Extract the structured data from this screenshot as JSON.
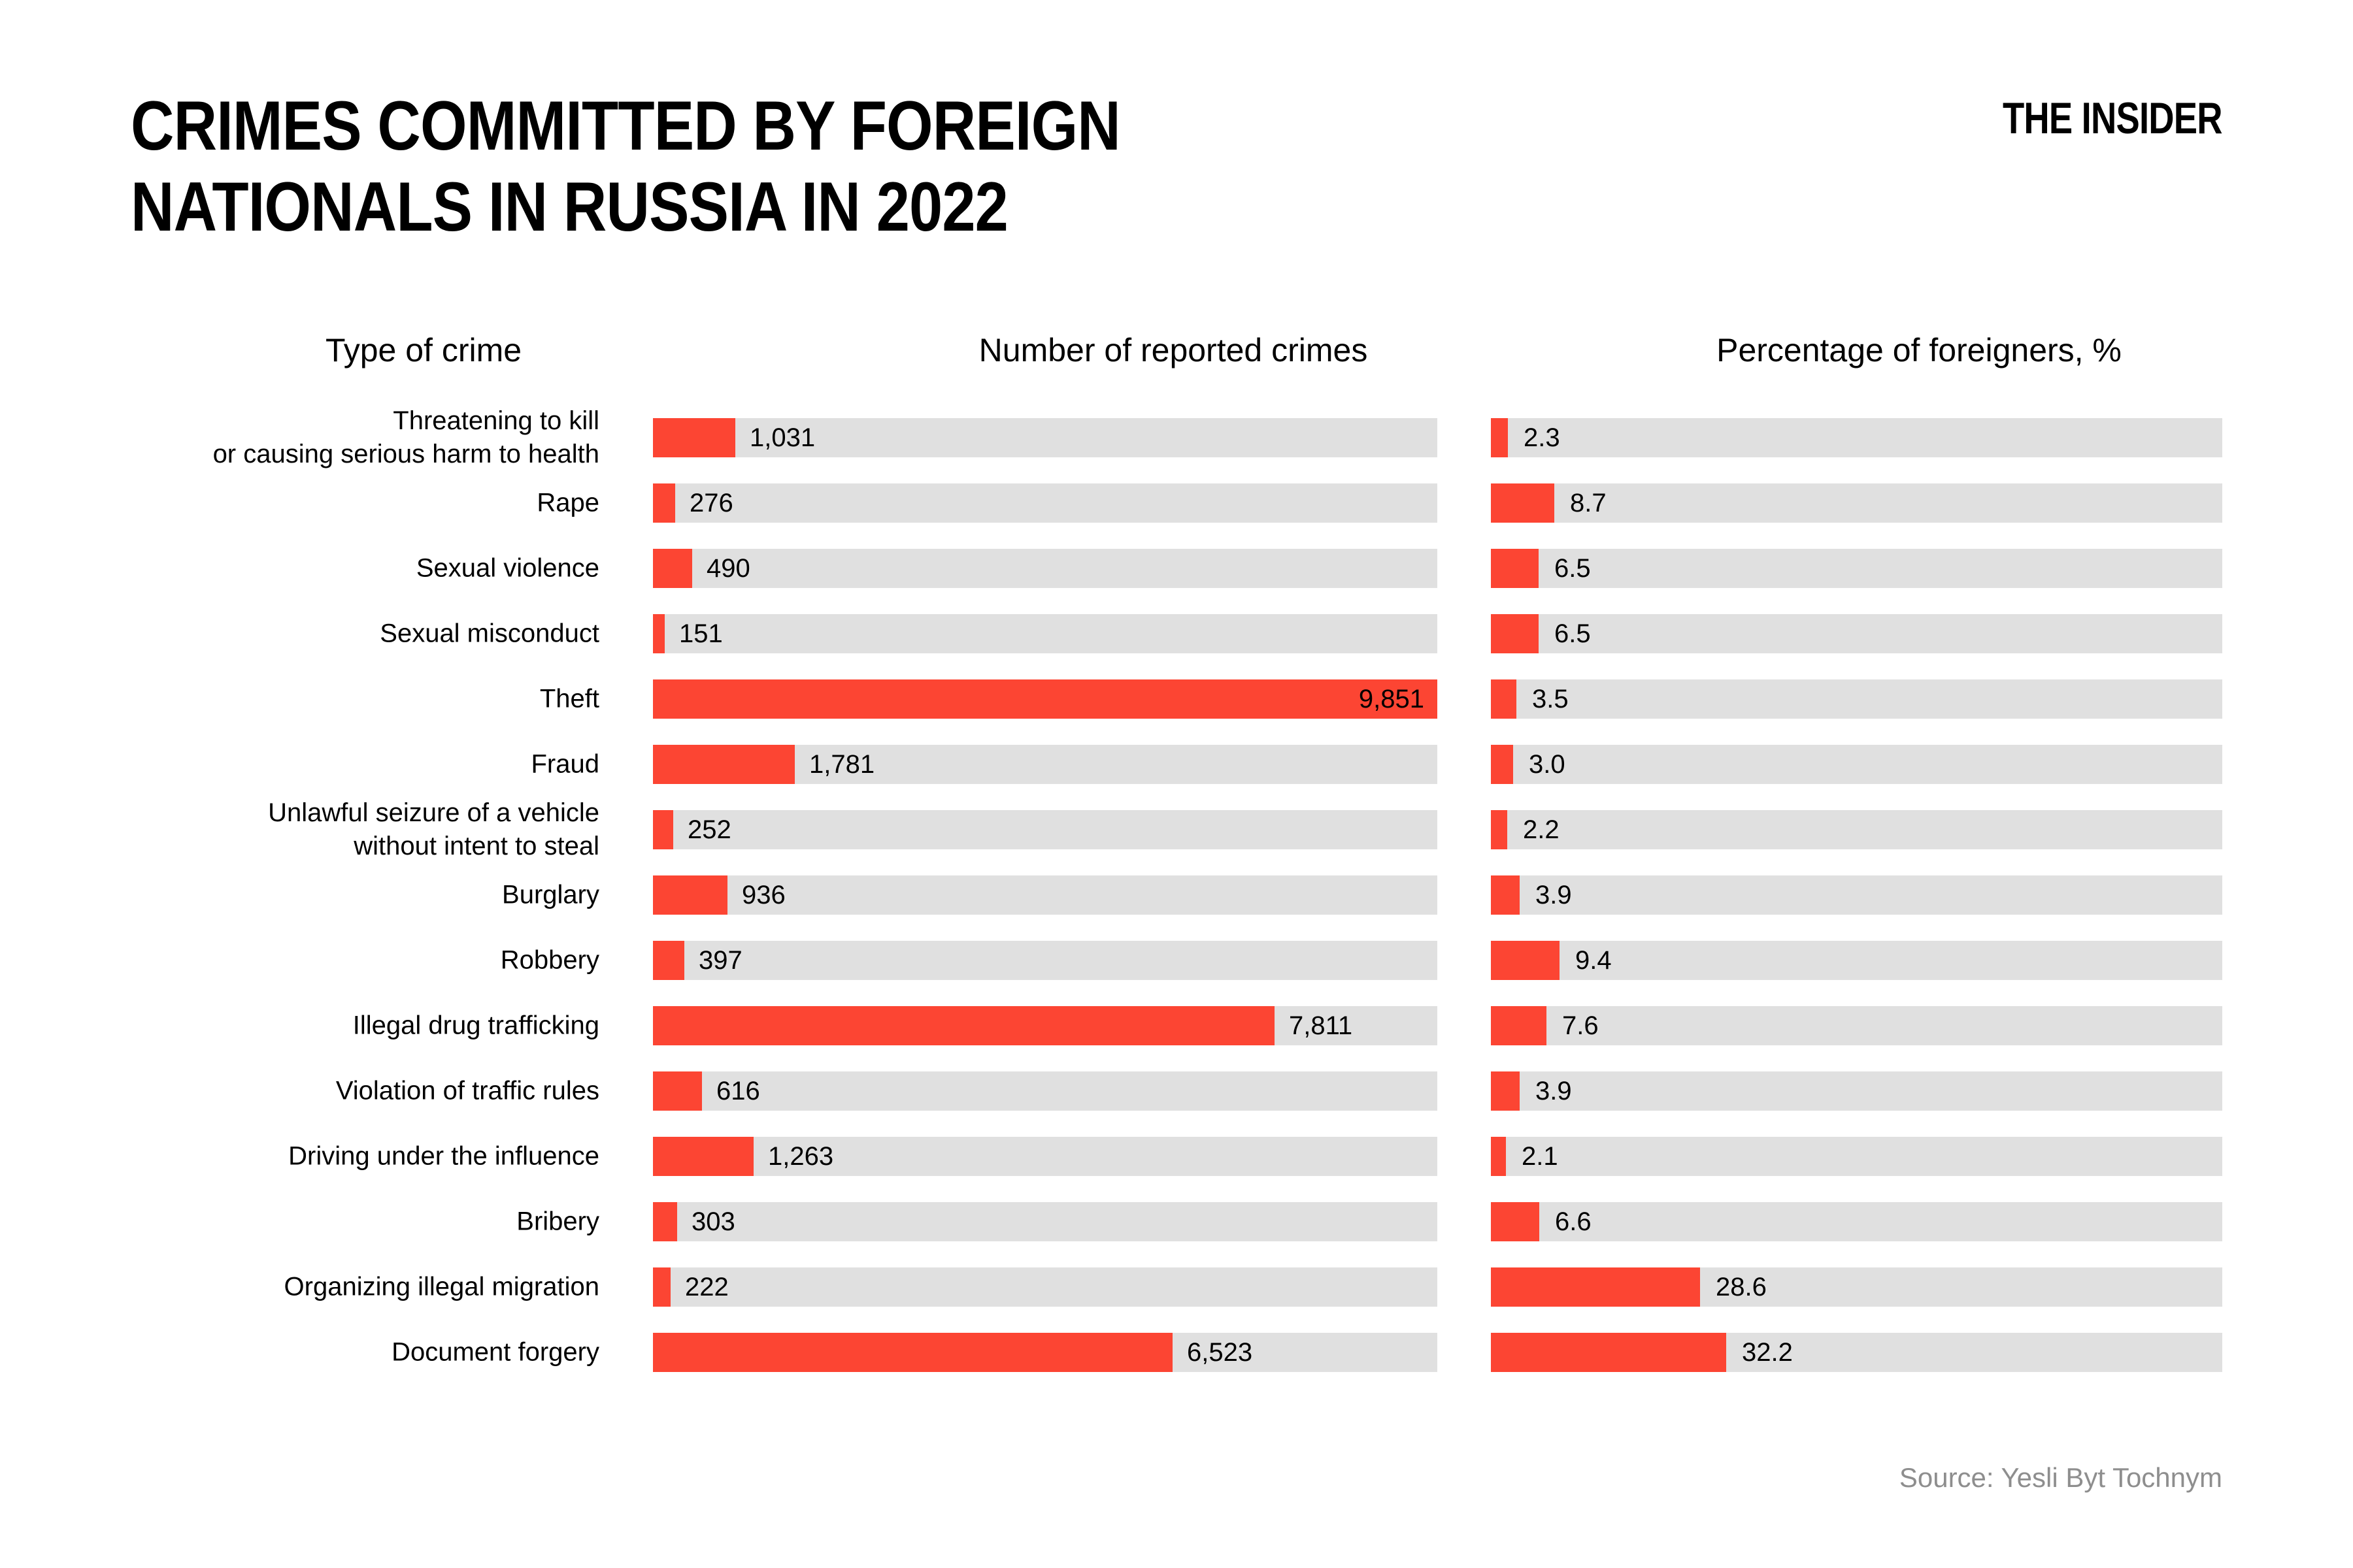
{
  "header": {
    "title_lines": [
      "CRIMES COMMITTED BY FOREIGN",
      "NATIONALS IN RUSSIA IN 2022"
    ],
    "logo": "THE INSIDER"
  },
  "columns": {
    "crime": "Type of crime",
    "number": "Number of reported crimes",
    "percent": "Percentage of foreigners, %"
  },
  "source": "Source: Yesli Byt Tochnym",
  "colors": {
    "bar_red": "#FC4533",
    "track_gray": "#E0E0E0",
    "source_gray": "#8E8E8E"
  },
  "chart_data": {
    "type": "bar",
    "orientation": "horizontal",
    "title": "CRIMES COMMITTED BY FOREIGN NATIONALS IN RUSSIA IN 2022",
    "columns": [
      "Type of crime",
      "Number of reported crimes",
      "Percentage of foreigners, %"
    ],
    "number_axis_max": 9851,
    "percent_axis_max": 100,
    "grid": false,
    "legend": "none",
    "rows": [
      {
        "crime_lines": [
          "Threatening to kill",
          "or causing serious harm to health"
        ],
        "crimes": 1031,
        "crimes_label": "1,031",
        "pct": 2.3,
        "pct_label": "2.3"
      },
      {
        "crime_lines": [
          "Rape"
        ],
        "crimes": 276,
        "crimes_label": "276",
        "pct": 8.7,
        "pct_label": "8.7"
      },
      {
        "crime_lines": [
          "Sexual violence"
        ],
        "crimes": 490,
        "crimes_label": "490",
        "pct": 6.5,
        "pct_label": "6.5"
      },
      {
        "crime_lines": [
          "Sexual misconduct"
        ],
        "crimes": 151,
        "crimes_label": "151",
        "pct": 6.5,
        "pct_label": "6.5"
      },
      {
        "crime_lines": [
          "Theft"
        ],
        "crimes": 9851,
        "crimes_label": "9,851",
        "pct": 3.5,
        "pct_label": "3.5",
        "value_inside": true
      },
      {
        "crime_lines": [
          "Fraud"
        ],
        "crimes": 1781,
        "crimes_label": "1,781",
        "pct": 3.0,
        "pct_label": "3.0"
      },
      {
        "crime_lines": [
          "Unlawful seizure of a vehicle",
          "without intent to steal"
        ],
        "crimes": 252,
        "crimes_label": "252",
        "pct": 2.2,
        "pct_label": "2.2"
      },
      {
        "crime_lines": [
          "Burglary"
        ],
        "crimes": 936,
        "crimes_label": "936",
        "pct": 3.9,
        "pct_label": "3.9"
      },
      {
        "crime_lines": [
          "Robbery"
        ],
        "crimes": 397,
        "crimes_label": "397",
        "pct": 9.4,
        "pct_label": "9.4"
      },
      {
        "crime_lines": [
          "Illegal drug trafficking"
        ],
        "crimes": 7811,
        "crimes_label": "7,811",
        "pct": 7.6,
        "pct_label": "7.6"
      },
      {
        "crime_lines": [
          "Violation of traffic rules"
        ],
        "crimes": 616,
        "crimes_label": "616",
        "pct": 3.9,
        "pct_label": "3.9"
      },
      {
        "crime_lines": [
          "Driving under the influence"
        ],
        "crimes": 1263,
        "crimes_label": "1,263",
        "pct": 2.1,
        "pct_label": "2.1"
      },
      {
        "crime_lines": [
          "Bribery"
        ],
        "crimes": 303,
        "crimes_label": "303",
        "pct": 6.6,
        "pct_label": "6.6"
      },
      {
        "crime_lines": [
          "Organizing illegal migration"
        ],
        "crimes": 222,
        "crimes_label": "222",
        "pct": 28.6,
        "pct_label": "28.6"
      },
      {
        "crime_lines": [
          "Document forgery"
        ],
        "crimes": 6523,
        "crimes_label": "6,523",
        "pct": 32.2,
        "pct_label": "32.2"
      }
    ]
  }
}
